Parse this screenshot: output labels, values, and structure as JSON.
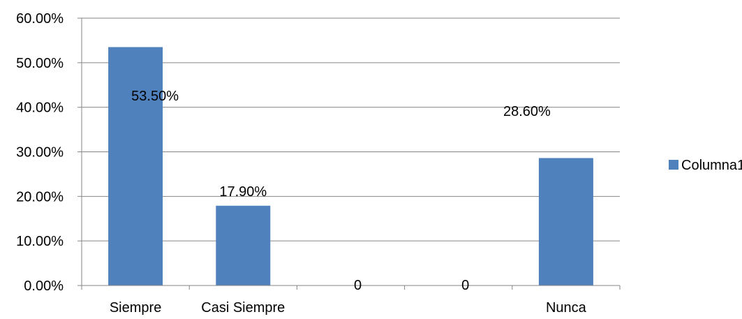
{
  "chart_data": {
    "type": "bar",
    "categories": [
      "Siempre",
      "Casi Siempre",
      "",
      "",
      "Nunca"
    ],
    "series": [
      {
        "name": "Columna1",
        "values": [
          0.535,
          0.179,
          0,
          0,
          0.286
        ],
        "data_labels": [
          "53.50%",
          "17.90%",
          "0",
          "0",
          "28.60%"
        ],
        "color": "#4F81BD"
      }
    ],
    "y_ticks": [
      "0.00%",
      "10.00%",
      "20.00%",
      "30.00%",
      "40.00%",
      "50.00%",
      "60.00%"
    ],
    "ylim": [
      0,
      0.6
    ],
    "grid": true,
    "legend_position": "right",
    "gridline_color": "#868686",
    "axis_color": "#868686"
  }
}
